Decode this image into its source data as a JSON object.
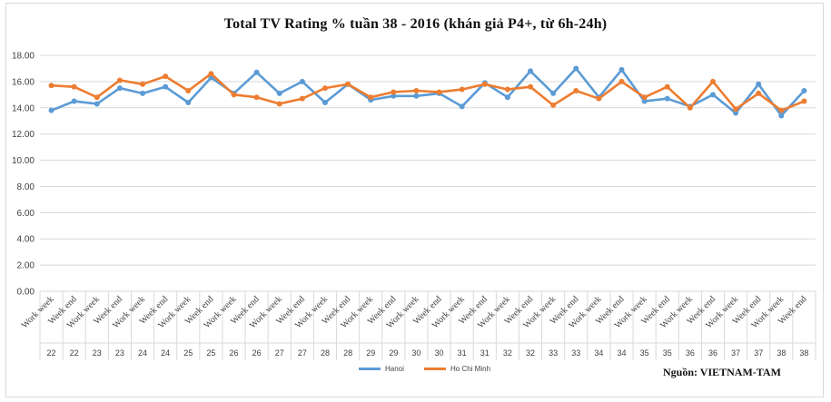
{
  "colors": {
    "hanoi": "#5b9bd5",
    "hcm": "#ed7d31",
    "grid": "#d9d9d9",
    "axis_text": "#404040"
  },
  "source": "Nguồn:  VIETNAM-TAM",
  "chart_data": {
    "type": "line",
    "title": "Total TV  Rating % tuần 38 - 2016 (khán  giả P4+, từ 6h-24h)",
    "ylim": [
      0,
      18
    ],
    "yticks": [
      "0.00",
      "2.00",
      "4.00",
      "6.00",
      "8.00",
      "10.00",
      "12.00",
      "14.00",
      "16.00",
      "18.00"
    ],
    "categories": [
      {
        "period": "Work week",
        "week": "22"
      },
      {
        "period": "Week end",
        "week": "22"
      },
      {
        "period": "Work week",
        "week": "23"
      },
      {
        "period": "Week end",
        "week": "23"
      },
      {
        "period": "Work week",
        "week": "24"
      },
      {
        "period": "Week end",
        "week": "24"
      },
      {
        "period": "Work week",
        "week": "25"
      },
      {
        "period": "Week end",
        "week": "25"
      },
      {
        "period": "Work week",
        "week": "26"
      },
      {
        "period": "Week end",
        "week": "26"
      },
      {
        "period": "Work week",
        "week": "27"
      },
      {
        "period": "Week end",
        "week": "27"
      },
      {
        "period": "Work week",
        "week": "28"
      },
      {
        "period": "Week end",
        "week": "28"
      },
      {
        "period": "Work week",
        "week": "29"
      },
      {
        "period": "Week end",
        "week": "29"
      },
      {
        "period": "Work week",
        "week": "30"
      },
      {
        "period": "Week end",
        "week": "30"
      },
      {
        "period": "Work week",
        "week": "31"
      },
      {
        "period": "Week end",
        "week": "31"
      },
      {
        "period": "Work week",
        "week": "32"
      },
      {
        "period": "Week end",
        "week": "32"
      },
      {
        "period": "Work week",
        "week": "33"
      },
      {
        "period": "Week end",
        "week": "33"
      },
      {
        "period": "Work week",
        "week": "34"
      },
      {
        "period": "Week end",
        "week": "34"
      },
      {
        "period": "Work week",
        "week": "35"
      },
      {
        "period": "Week end",
        "week": "35"
      },
      {
        "period": "Work week",
        "week": "36"
      },
      {
        "period": "Week end",
        "week": "36"
      },
      {
        "period": "Work week",
        "week": "37"
      },
      {
        "period": "Week end",
        "week": "37"
      },
      {
        "period": "Work week",
        "week": "38"
      },
      {
        "period": "Week end",
        "week": "38"
      }
    ],
    "series": [
      {
        "name": "Hanoi",
        "color_key": "hanoi",
        "values": [
          13.8,
          14.5,
          14.3,
          15.5,
          15.1,
          15.6,
          14.4,
          16.3,
          15.1,
          16.7,
          15.1,
          16.0,
          14.4,
          15.8,
          14.6,
          14.9,
          14.9,
          15.1,
          14.1,
          15.9,
          14.8,
          16.8,
          15.1,
          17.0,
          14.8,
          16.9,
          14.5,
          14.7,
          14.1,
          15.0,
          13.6,
          15.8,
          13.4,
          15.3
        ]
      },
      {
        "name": "Ho Chi Minh",
        "color_key": "hcm",
        "values": [
          15.7,
          15.6,
          14.8,
          16.1,
          15.8,
          16.4,
          15.3,
          16.6,
          15.0,
          14.8,
          14.3,
          14.7,
          15.5,
          15.8,
          14.8,
          15.2,
          15.3,
          15.2,
          15.4,
          15.8,
          15.4,
          15.6,
          14.2,
          15.3,
          14.7,
          16.0,
          14.8,
          15.6,
          14.0,
          16.0,
          13.9,
          15.1,
          13.8,
          14.5
        ]
      }
    ]
  }
}
